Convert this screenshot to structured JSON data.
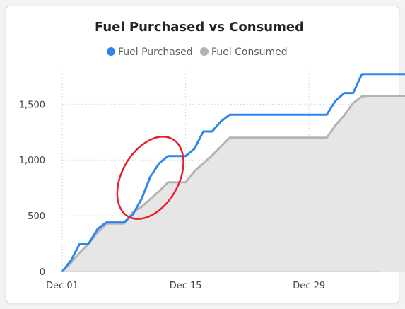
{
  "chart_data": {
    "type": "line",
    "title": "Fuel Purchased vs Consumed",
    "xlabel": "",
    "ylabel": "",
    "x_axis": {
      "type": "date",
      "range": [
        "2023-12-01",
        "2024-01-06"
      ],
      "ticks": [
        {
          "date": "2023-12-01",
          "label": "Dec 01"
        },
        {
          "date": "2023-12-15",
          "label": "Dec 15"
        },
        {
          "date": "2023-12-29",
          "label": "Dec 29"
        }
      ]
    },
    "y_axis": {
      "range": [
        0,
        1800
      ],
      "ticks": [
        {
          "value": 0,
          "label": "0"
        },
        {
          "value": 500,
          "label": "500"
        },
        {
          "value": 1000,
          "label": "1,000"
        },
        {
          "value": 1500,
          "label": "1,500"
        }
      ]
    },
    "grid": "dotted",
    "legend": "top-center",
    "series": [
      {
        "name": "Fuel Purchased",
        "color": "#2d86f0",
        "style": "line",
        "points": [
          [
            "2023-12-01",
            0
          ],
          [
            "2023-12-02",
            100
          ],
          [
            "2023-12-03",
            250
          ],
          [
            "2023-12-04",
            250
          ],
          [
            "2023-12-05",
            380
          ],
          [
            "2023-12-06",
            440
          ],
          [
            "2023-12-07",
            440
          ],
          [
            "2023-12-08",
            440
          ],
          [
            "2023-12-09",
            510
          ],
          [
            "2023-12-10",
            650
          ],
          [
            "2023-12-11",
            850
          ],
          [
            "2023-12-12",
            970
          ],
          [
            "2023-12-13",
            1035
          ],
          [
            "2023-12-14",
            1035
          ],
          [
            "2023-12-15",
            1035
          ],
          [
            "2023-12-16",
            1100
          ],
          [
            "2023-12-17",
            1255
          ],
          [
            "2023-12-18",
            1255
          ],
          [
            "2023-12-19",
            1345
          ],
          [
            "2023-12-20",
            1405
          ],
          [
            "2023-12-31",
            1405
          ],
          [
            "2024-01-01",
            1530
          ],
          [
            "2024-01-02",
            1600
          ],
          [
            "2024-01-03",
            1600
          ],
          [
            "2024-01-04",
            1770
          ],
          [
            "2024-01-09",
            1770
          ]
        ]
      },
      {
        "name": "Fuel Consumed",
        "color": "#b3b3b3",
        "style": "area",
        "fill": "#e6e6e6",
        "points": [
          [
            "2023-12-01",
            0
          ],
          [
            "2023-12-02",
            80
          ],
          [
            "2023-12-03",
            170
          ],
          [
            "2023-12-04",
            250
          ],
          [
            "2023-12-05",
            350
          ],
          [
            "2023-12-06",
            430
          ],
          [
            "2023-12-07",
            430
          ],
          [
            "2023-12-08",
            430
          ],
          [
            "2023-12-09",
            530
          ],
          [
            "2023-12-10",
            580
          ],
          [
            "2023-12-11",
            650
          ],
          [
            "2023-12-12",
            720
          ],
          [
            "2023-12-13",
            800
          ],
          [
            "2023-12-14",
            800
          ],
          [
            "2023-12-15",
            800
          ],
          [
            "2023-12-16",
            900
          ],
          [
            "2023-12-17",
            970
          ],
          [
            "2023-12-18",
            1040
          ],
          [
            "2023-12-19",
            1120
          ],
          [
            "2023-12-20",
            1200
          ],
          [
            "2023-12-31",
            1200
          ],
          [
            "2024-01-01",
            1310
          ],
          [
            "2024-01-02",
            1400
          ],
          [
            "2024-01-03",
            1510
          ],
          [
            "2024-01-04",
            1570
          ],
          [
            "2024-01-05",
            1575
          ],
          [
            "2024-01-09",
            1575
          ]
        ]
      }
    ],
    "annotations": [
      {
        "type": "ellipse",
        "color": "#e8202a",
        "description": "highlight",
        "center": [
          "2023-12-11",
          840
        ],
        "rx_days": 3.2,
        "ry_value": 400,
        "rotation_deg": 30
      }
    ]
  }
}
